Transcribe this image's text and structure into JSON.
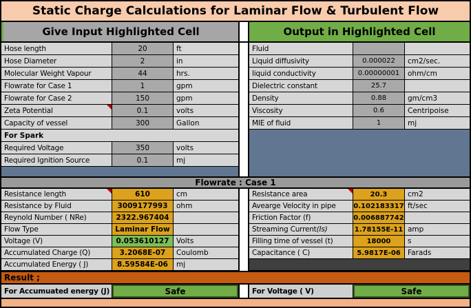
{
  "title": "Static Charge Calculations for Laminar Flow & Turbulent Flow",
  "section_headers": {
    "input": "Give Input Highlighted Cell",
    "output": "Output in Highlighted Cell"
  },
  "colors": {
    "peach_title": "#F8CBAD",
    "peach_bottom": "#F4B183",
    "accent_green": "#70AD47",
    "value_green": "#7CBE58",
    "accent_gold": "#DCA21D",
    "band_orange": "#C55A11",
    "slate_blue": "#617690",
    "charcoal": "#3F3F3F",
    "header_gray": "#A6A6A6",
    "value_gray": "#A9A9A9",
    "label_gray": "#D6D6D6",
    "band_gray": "#9A9A9A",
    "comment_red": "#C00000"
  },
  "input_left": {
    "rows": [
      {
        "label": "Hose length",
        "value": "20",
        "unit": "ft",
        "style": "input"
      },
      {
        "label": "Hose Diameter",
        "value": "2",
        "unit": "in",
        "style": "input"
      },
      {
        "label": "Molecular Weight Vapour",
        "value": "44",
        "unit": "hrs.",
        "style": "input"
      },
      {
        "label": "Flowrate for Case 1",
        "value": "1",
        "unit": "gpm",
        "style": "input"
      },
      {
        "label": "Flowrate for Case 2",
        "value": "150",
        "unit": "gpm",
        "style": "input"
      },
      {
        "label": "Zeta Potential",
        "value": "0.1",
        "unit": "volts",
        "style": "input",
        "comment": true
      },
      {
        "label": "Capacity of vessel",
        "value": "300",
        "unit": "Gallon",
        "style": "input"
      }
    ],
    "spark_header": "For Spark",
    "spark_rows": [
      {
        "label": "Required Voltage",
        "value": "350",
        "unit": "volts",
        "style": "input"
      },
      {
        "label": "Required Ignition Source",
        "value": "0.1",
        "unit": "mj",
        "style": "input"
      }
    ]
  },
  "input_right": {
    "rows": [
      {
        "label": "Fluid",
        "value": "",
        "unit": "",
        "style": "input"
      },
      {
        "label": "Liquid diffusivity",
        "value": "0.000022",
        "unit": "cm2/sec.",
        "style": "input"
      },
      {
        "label": "liquid conductivity",
        "value": "0.00000001",
        "unit": "ohm/cm",
        "style": "input"
      },
      {
        "label": "Dielectric constant",
        "value": "25.7",
        "unit": "",
        "style": "input"
      },
      {
        "label": "Density",
        "value": "0.88",
        "unit": "gm/cm3",
        "style": "input"
      },
      {
        "label": "Viscosity",
        "value": "0.6",
        "unit": "Centripoise",
        "style": "input"
      },
      {
        "label": "MIE of fluid",
        "value": "1",
        "unit": "mj",
        "style": "input"
      }
    ]
  },
  "case_band_label": "Flowrate : Case 1",
  "results_left": {
    "rows": [
      {
        "label": "Resistance length",
        "value": "610",
        "unit": "cm",
        "style": "gold",
        "comment": true
      },
      {
        "label": "Resistance by Fluid",
        "value": "3009177993",
        "unit": "ohm",
        "style": "gold"
      },
      {
        "label": "Reynold Number ( NRe)",
        "value": "2322.967404",
        "unit": "",
        "style": "gold"
      },
      {
        "label": "Flow Type",
        "value": "Laminar Flow",
        "unit": "",
        "style": "gold"
      },
      {
        "label": "Voltage (V)",
        "value": "0.053610127",
        "unit": "Volts",
        "style": "green"
      },
      {
        "label": "Accumulated Charge (Q)",
        "value": "3.2068E-07",
        "unit": "Coulomb",
        "style": "gold"
      },
      {
        "label": "Accumulated Energy ( J)",
        "value": "8.59584E-06",
        "unit": "mj",
        "style": "gold"
      }
    ]
  },
  "results_right": {
    "rows": [
      {
        "label": "Resistance area",
        "value": "20.3",
        "unit": "cm2",
        "style": "gold",
        "comment": true
      },
      {
        "label": "Avearge Velocity in pipe",
        "value": "0.102183317",
        "unit": "ft/sec",
        "style": "gold"
      },
      {
        "label": "Friction Factor (f)",
        "value": "0.006887742",
        "unit": "",
        "style": "gold"
      },
      {
        "label": "Streaming Current ",
        "label_italic": "(Is)",
        "value": "1.78155E-11",
        "unit": "amp",
        "style": "gold"
      },
      {
        "label": "Filling time of vessel (t)",
        "value": "18000",
        "unit": "s",
        "style": "gold"
      },
      {
        "label": "Capacitance ( C)",
        "value": "5.9817E-06",
        "unit": "Farads",
        "style": "gold"
      }
    ]
  },
  "result_band_label": "Result ;",
  "verdicts": {
    "left": {
      "label": "For Accumuated energy (J)",
      "value": "Safe"
    },
    "right": {
      "label": "For Voltage ( V)",
      "value": "Safe"
    }
  }
}
